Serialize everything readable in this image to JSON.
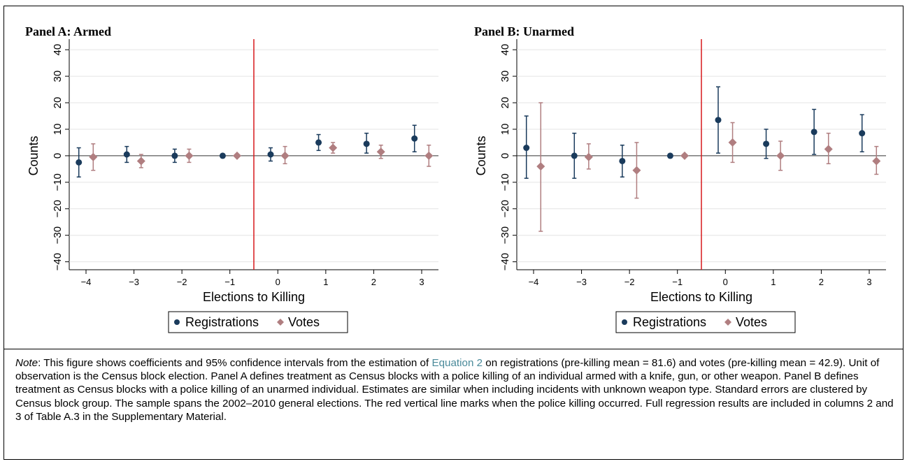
{
  "colors": {
    "registrations": "#1a3b5c",
    "votes": "#b07e80",
    "event_line": "#d7191c"
  },
  "note": {
    "label": "Note",
    "text_before_link": ": This figure shows coefficients and 95% confidence intervals from the estimation of ",
    "link": "Equation 2",
    "text_after_link": " on registrations (pre-killing mean = 81.6) and votes (pre-killing mean = 42.9). Unit of observation is the Census block election. Panel A defines treatment as Census blocks with a police killing of an individual armed with a knife, gun, or other weapon. Panel B defines treatment as Census blocks with a police killing of an unarmed individual. Estimates are similar when including incidents with unknown weapon type. Standard errors are clustered by Census block group. The sample spans the 2002–2010 general elections. The red vertical line marks when the police killing occurred. Full regression results are included in columns 2 and 3 of Table A.3 in the Supplementary Material."
  },
  "chart_data": [
    {
      "type": "scatter",
      "title": "Panel A: Armed",
      "xlabel": "Elections to Killing",
      "ylabel": "Counts",
      "x_ticks": [
        -4,
        -3,
        -2,
        -1,
        0,
        1,
        2,
        3
      ],
      "y_ticks": [
        -40,
        -30,
        -20,
        -10,
        0,
        10,
        20,
        30,
        40
      ],
      "ylim": [
        -43,
        44
      ],
      "xlim": [
        -4.35,
        3.35
      ],
      "event_line_x": -0.5,
      "legend": [
        "Registrations",
        "Votes"
      ],
      "legend_position": "bottom",
      "series": [
        {
          "name": "Registrations",
          "points": [
            {
              "x": -4,
              "y": -2.5,
              "lo": -8,
              "hi": 3
            },
            {
              "x": -3,
              "y": 0.5,
              "lo": -2.5,
              "hi": 3.5
            },
            {
              "x": -2,
              "y": 0,
              "lo": -2.5,
              "hi": 2.5
            },
            {
              "x": -1,
              "y": 0,
              "lo": 0,
              "hi": 0
            },
            {
              "x": 0,
              "y": 0.5,
              "lo": -2,
              "hi": 3
            },
            {
              "x": 1,
              "y": 5,
              "lo": 2,
              "hi": 8
            },
            {
              "x": 2,
              "y": 4.5,
              "lo": 1,
              "hi": 8.5
            },
            {
              "x": 3,
              "y": 6.5,
              "lo": 1.5,
              "hi": 11.5
            }
          ]
        },
        {
          "name": "Votes",
          "points": [
            {
              "x": -4,
              "y": -0.5,
              "lo": -5.5,
              "hi": 4.5
            },
            {
              "x": -3,
              "y": -2,
              "lo": -4.5,
              "hi": 0.5
            },
            {
              "x": -2,
              "y": 0,
              "lo": -2.5,
              "hi": 2.5
            },
            {
              "x": -1,
              "y": 0,
              "lo": 0,
              "hi": 0
            },
            {
              "x": 0,
              "y": 0,
              "lo": -3,
              "hi": 3.5
            },
            {
              "x": 1,
              "y": 3,
              "lo": 1,
              "hi": 5
            },
            {
              "x": 2,
              "y": 1.5,
              "lo": -1,
              "hi": 4
            },
            {
              "x": 3,
              "y": 0,
              "lo": -4,
              "hi": 4
            }
          ]
        }
      ]
    },
    {
      "type": "scatter",
      "title": "Panel B: Unarmed",
      "xlabel": "Elections to Killing",
      "ylabel": "Counts",
      "x_ticks": [
        -4,
        -3,
        -2,
        -1,
        0,
        1,
        2,
        3
      ],
      "y_ticks": [
        -40,
        -30,
        -20,
        -10,
        0,
        10,
        20,
        30,
        40
      ],
      "ylim": [
        -43,
        44
      ],
      "xlim": [
        -4.35,
        3.35
      ],
      "event_line_x": -0.5,
      "legend": [
        "Registrations",
        "Votes"
      ],
      "legend_position": "bottom",
      "series": [
        {
          "name": "Registrations",
          "points": [
            {
              "x": -4,
              "y": 3,
              "lo": -8.5,
              "hi": 15
            },
            {
              "x": -3,
              "y": 0,
              "lo": -8.5,
              "hi": 8.5
            },
            {
              "x": -2,
              "y": -2,
              "lo": -8,
              "hi": 4
            },
            {
              "x": -1,
              "y": 0,
              "lo": 0,
              "hi": 0
            },
            {
              "x": 0,
              "y": 13.5,
              "lo": 1,
              "hi": 26
            },
            {
              "x": 1,
              "y": 4.5,
              "lo": -1,
              "hi": 10
            },
            {
              "x": 2,
              "y": 9,
              "lo": 0.5,
              "hi": 17.5
            },
            {
              "x": 3,
              "y": 8.5,
              "lo": 1.5,
              "hi": 15.5
            }
          ]
        },
        {
          "name": "Votes",
          "points": [
            {
              "x": -4,
              "y": -4,
              "lo": -28.5,
              "hi": 20
            },
            {
              "x": -3,
              "y": -0.5,
              "lo": -5,
              "hi": 4.5
            },
            {
              "x": -2,
              "y": -5.5,
              "lo": -16,
              "hi": 5
            },
            {
              "x": -1,
              "y": 0,
              "lo": 0,
              "hi": 0
            },
            {
              "x": 0,
              "y": 5,
              "lo": -2.5,
              "hi": 12.5
            },
            {
              "x": 1,
              "y": 0,
              "lo": -5.5,
              "hi": 5.5
            },
            {
              "x": 2,
              "y": 2.5,
              "lo": -3,
              "hi": 8.5
            },
            {
              "x": 3,
              "y": -2,
              "lo": -7,
              "hi": 3.5
            }
          ]
        }
      ]
    }
  ]
}
